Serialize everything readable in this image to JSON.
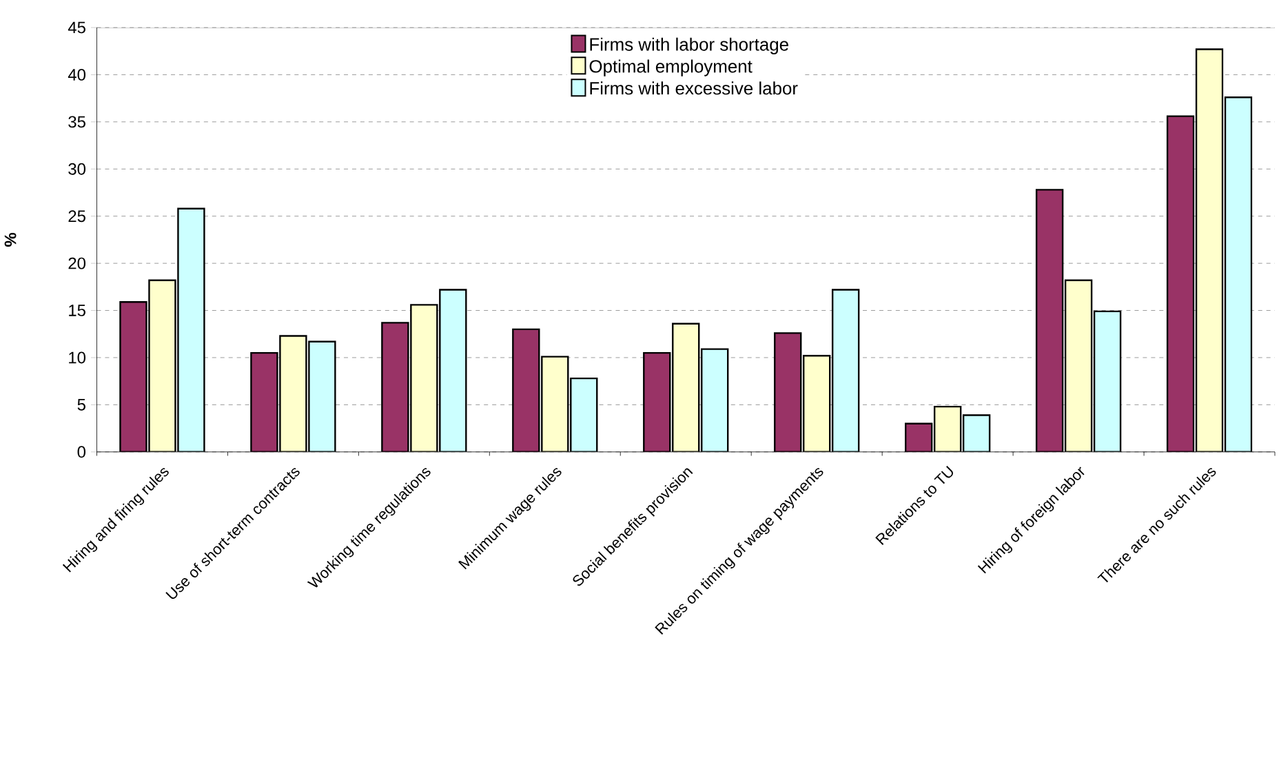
{
  "chart_data": {
    "type": "bar",
    "ylabel": "%",
    "categories": [
      "Hiring and firing rules",
      "Use of short-term contracts",
      "Working time regulations",
      "Minimum wage rules",
      "Social benefits provision",
      "Rules on timing of wage payments",
      "Relations to TU",
      "Hiring of foreign labor",
      "There are no such rules"
    ],
    "series": [
      {
        "name": "Firms with labor shortage",
        "color": "#993366",
        "values": [
          15.9,
          10.5,
          13.7,
          13.0,
          10.5,
          12.6,
          3.0,
          27.8,
          35.6
        ]
      },
      {
        "name": "Optimal employment",
        "color": "#ffffcc",
        "values": [
          18.2,
          12.3,
          15.6,
          10.1,
          13.6,
          10.2,
          4.8,
          18.2,
          42.7
        ]
      },
      {
        "name": "Firms with excessive labor",
        "color": "#ccffff",
        "values": [
          25.8,
          11.7,
          17.2,
          7.8,
          10.9,
          17.2,
          3.9,
          14.9,
          37.6
        ]
      }
    ],
    "ylim": [
      0,
      45
    ],
    "yticks": [
      0,
      5,
      10,
      15,
      20,
      25,
      30,
      35,
      40,
      45
    ],
    "grid": "y",
    "legend": "top"
  }
}
